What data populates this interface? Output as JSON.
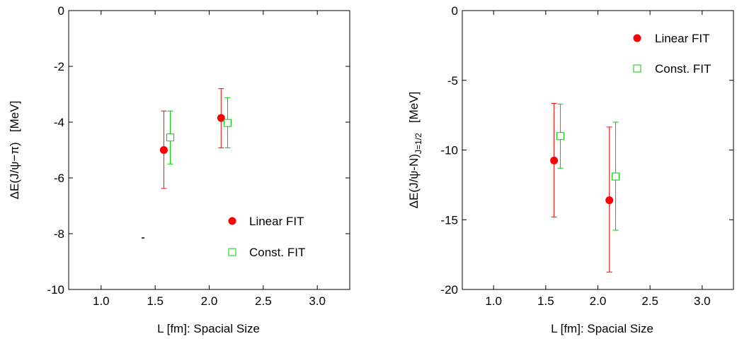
{
  "chart_data": [
    {
      "type": "scatter",
      "xlabel": "L [fm]: Spacial Size",
      "ylabel_main": "ΔE(J/ψ−π)",
      "ylabel_sub": "",
      "ylabel_unit": "[MeV]",
      "xlim": [
        0.7,
        3.3
      ],
      "ylim": [
        -10,
        0
      ],
      "xticks": [
        1.0,
        1.5,
        2.0,
        2.5,
        3.0
      ],
      "xtick_labels": [
        "1.0",
        "1.5",
        "2.0",
        "2.5",
        "3.0"
      ],
      "yticks": [
        -10,
        -8,
        -6,
        -4,
        -2,
        0
      ],
      "ytick_labels": [
        "-10",
        "-8",
        "-6",
        "-4",
        "-2",
        "0"
      ],
      "legend_position": "bottom-right",
      "series": [
        {
          "name": "Linear FIT",
          "marker": "filled-circle",
          "color": "#ff0000",
          "points": [
            {
              "x": 1.58,
              "y": -5.0,
              "ylow": -6.38,
              "yhigh": -3.6
            },
            {
              "x": 2.11,
              "y": -3.85,
              "ylow": -4.92,
              "yhigh": -2.8
            }
          ]
        },
        {
          "name": "Const. FIT",
          "marker": "open-square",
          "color": "#00cc00",
          "points": [
            {
              "x": 1.64,
              "y": -4.55,
              "ylow": -5.5,
              "yhigh": -3.6
            },
            {
              "x": 2.17,
              "y": -4.03,
              "ylow": -4.92,
              "yhigh": -3.13
            }
          ]
        }
      ]
    },
    {
      "type": "scatter",
      "xlabel": "L [fm]:   Spacial Size",
      "ylabel_main": "ΔE(J/ψ-N)",
      "ylabel_sub": "J=1/2",
      "ylabel_unit": "[MeV]",
      "xlim": [
        0.7,
        3.3
      ],
      "ylim": [
        -20,
        0
      ],
      "xticks": [
        1.0,
        1.5,
        2.0,
        2.5,
        3.0
      ],
      "xtick_labels": [
        "1.0",
        "1.5",
        "2.0",
        "2.5",
        "3.0"
      ],
      "yticks": [
        -20,
        -15,
        -10,
        -5,
        0
      ],
      "ytick_labels": [
        "-20",
        "-15",
        "-10",
        "-5",
        "0"
      ],
      "legend_position": "top-right",
      "series": [
        {
          "name": "Linear FIT",
          "marker": "filled-circle",
          "color": "#ff0000",
          "points": [
            {
              "x": 1.58,
              "y": -10.75,
              "ylow": -14.8,
              "yhigh": -6.65
            },
            {
              "x": 2.11,
              "y": -13.6,
              "ylow": -18.75,
              "yhigh": -8.35
            }
          ]
        },
        {
          "name": "Const. FIT",
          "marker": "open-square",
          "color": "#00cc00",
          "points": [
            {
              "x": 1.64,
              "y": -9.0,
              "ylow": -11.3,
              "yhigh": -6.7
            },
            {
              "x": 2.17,
              "y": -11.9,
              "ylow": -15.75,
              "yhigh": -8.0
            }
          ]
        }
      ]
    }
  ]
}
